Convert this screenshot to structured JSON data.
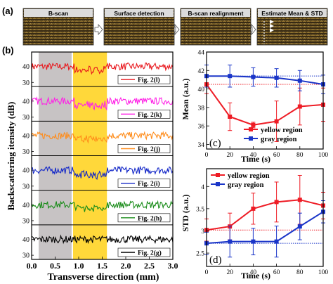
{
  "panel_a": {
    "letter": "(a)",
    "steps": [
      {
        "label": "B-scan"
      },
      {
        "label": "Surface detection"
      },
      {
        "label": "B-scan realignment"
      },
      {
        "label": "Estimate Mean & STD"
      }
    ]
  },
  "panel_b": {
    "letter": "(b)",
    "ylabel": "Backscattering itensity (dB)",
    "xlabel": "Transverse direction (mm)",
    "xticks": [
      "0.0",
      "0.5",
      "1.0",
      "1.5",
      "2.0",
      "2.5",
      "3.0"
    ],
    "xlim": [
      0,
      3.0
    ],
    "yticks": [
      "40",
      "30"
    ],
    "gray_region_mm": [
      0.15,
      0.85
    ],
    "yellow_region_mm": [
      0.88,
      1.6
    ],
    "gray_color": "#c7c3c4",
    "yellow_color": "#ffd83a",
    "traces": [
      {
        "legend": "Fig. 2(l)",
        "color": "#e8161c"
      },
      {
        "legend": "Fig. 2(k)",
        "color": "#ff22e6"
      },
      {
        "legend": "Fig. 2(j)",
        "color": "#ff8c1a"
      },
      {
        "legend": "Fig. 2(i)",
        "color": "#1428c8"
      },
      {
        "legend": "Fig. 2(h)",
        "color": "#1a8c1a"
      },
      {
        "legend": "Fig. 2(g)",
        "color": "#000000"
      }
    ]
  },
  "chart_data": [
    {
      "type": "line",
      "panel": "(c)",
      "xlabel": "Time (s)",
      "ylabel": "Mean (a.u.)",
      "x": [
        0,
        20,
        40,
        60,
        80,
        100
      ],
      "xlim": [
        0,
        100
      ],
      "ylim": [
        33.5,
        44
      ],
      "yticks": [
        34,
        36,
        38,
        40,
        42,
        44
      ],
      "xticks": [
        0,
        20,
        40,
        60,
        80,
        100
      ],
      "legend_position": "bottom-right",
      "series": [
        {
          "name": "yellow region",
          "color": "#ee1c25",
          "values": [
            40.5,
            37.0,
            36.1,
            36.5,
            38.1,
            38.3
          ],
          "errors": [
            1.0,
            1.5,
            0.3,
            2.2,
            2.0,
            1.8
          ]
        },
        {
          "name": "gray region",
          "color": "#1a35c8",
          "values": [
            41.4,
            41.4,
            41.3,
            41.2,
            40.9,
            40.5
          ],
          "errors": [
            1.2,
            1.2,
            1.0,
            1.0,
            1.1,
            1.0
          ]
        }
      ],
      "reference_lines": [
        {
          "y": 40.5,
          "color": "#ee1c25"
        },
        {
          "y": 41.4,
          "color": "#1a35c8"
        }
      ]
    },
    {
      "type": "line",
      "panel": "(d)",
      "xlabel": "Time (s)",
      "ylabel": "STD (a.u.)",
      "x": [
        0,
        20,
        40,
        60,
        80,
        100
      ],
      "xlim": [
        0,
        100
      ],
      "ylim": [
        2.2,
        4.4
      ],
      "yticks": [
        2.5,
        3.0,
        3.5,
        4.0
      ],
      "xticks": [
        0,
        20,
        40,
        60,
        80,
        100
      ],
      "legend_position": "top-left",
      "series": [
        {
          "name": "yellow region",
          "color": "#ee1c25",
          "values": [
            3.02,
            3.1,
            3.5,
            3.65,
            3.7,
            3.57
          ],
          "errors": [
            0.25,
            0.3,
            0.35,
            0.45,
            0.55,
            0.3
          ]
        },
        {
          "name": "gray region",
          "color": "#1a35c8",
          "values": [
            2.72,
            2.76,
            2.76,
            2.76,
            3.1,
            3.43
          ],
          "errors": [
            0.25,
            0.35,
            0.3,
            0.35,
            0.3,
            0.25
          ]
        }
      ],
      "reference_lines": [
        {
          "y": 3.02,
          "color": "#ee1c25"
        },
        {
          "y": 2.72,
          "color": "#1a35c8"
        }
      ]
    }
  ]
}
